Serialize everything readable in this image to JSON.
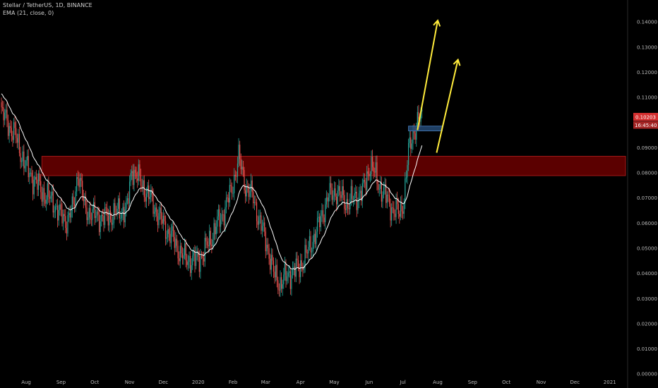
{
  "header": {
    "symbol_line": "Stellar / TetherUS, 1D, BINANCE",
    "indicator_line": "EMA (21, close, 0)"
  },
  "chart_data": {
    "type": "candlestick",
    "x_axis_labels": [
      "Aug",
      "Sep",
      "Oct",
      "Nov",
      "Dec",
      "2020",
      "Feb",
      "Mar",
      "Apr",
      "May",
      "Jun",
      "Jul",
      "Aug",
      "Sep",
      "Oct",
      "Nov",
      "Dec",
      "2021"
    ],
    "x_label_idx": [
      30,
      61,
      91,
      122,
      152,
      183,
      214,
      243,
      274,
      304,
      335,
      365,
      396,
      427,
      457,
      488,
      518,
      549
    ],
    "x_range_idx": [
      8,
      563
    ],
    "y_ticks": [
      "0.14000",
      "0.13000",
      "0.12000",
      "0.11000",
      "0.10000",
      "0.09000",
      "0.08000",
      "0.07000",
      "0.06000",
      "0.05000",
      "0.04000",
      "0.03000",
      "0.02000",
      "0.01000",
      "0.00000"
    ],
    "y_tick_values": [
      0.14,
      0.13,
      0.12,
      0.11,
      0.1,
      0.09,
      0.08,
      0.07,
      0.06,
      0.05,
      0.04,
      0.03,
      0.02,
      0.01,
      0.0
    ],
    "y_range": [
      -0.0005,
      0.1465
    ],
    "last_price": "0.10203",
    "last_price_value": 0.10203,
    "countdown": "16:45:40",
    "anchors": [
      [
        8,
        0.104
      ],
      [
        20,
        0.095
      ],
      [
        30,
        0.082
      ],
      [
        45,
        0.072
      ],
      [
        55,
        0.068
      ],
      [
        60,
        0.063
      ],
      [
        66,
        0.061
      ],
      [
        72,
        0.066
      ],
      [
        76,
        0.081
      ],
      [
        82,
        0.066
      ],
      [
        90,
        0.063
      ],
      [
        100,
        0.062
      ],
      [
        110,
        0.064
      ],
      [
        120,
        0.066
      ],
      [
        124,
        0.082
      ],
      [
        132,
        0.076
      ],
      [
        140,
        0.07
      ],
      [
        150,
        0.061
      ],
      [
        160,
        0.054
      ],
      [
        170,
        0.046
      ],
      [
        180,
        0.045
      ],
      [
        188,
        0.048
      ],
      [
        195,
        0.055
      ],
      [
        205,
        0.064
      ],
      [
        212,
        0.072
      ],
      [
        219,
        0.086
      ],
      [
        225,
        0.075
      ],
      [
        232,
        0.07
      ],
      [
        238,
        0.06
      ],
      [
        244,
        0.052
      ],
      [
        250,
        0.04
      ],
      [
        256,
        0.036
      ],
      [
        264,
        0.04
      ],
      [
        272,
        0.042
      ],
      [
        280,
        0.048
      ],
      [
        290,
        0.059
      ],
      [
        298,
        0.07
      ],
      [
        305,
        0.073
      ],
      [
        315,
        0.068
      ],
      [
        322,
        0.07
      ],
      [
        330,
        0.073
      ],
      [
        336,
        0.084
      ],
      [
        342,
        0.077
      ],
      [
        350,
        0.07
      ],
      [
        357,
        0.065
      ],
      [
        362,
        0.064
      ],
      [
        366,
        0.07
      ],
      [
        370,
        0.088
      ],
      [
        374,
        0.096
      ],
      [
        378,
        0.1
      ],
      [
        382,
        0.102
      ]
    ],
    "ema_label": "EMA (21, close, 0)",
    "resistance_zone": {
      "y_low": 0.0789,
      "y_high": 0.0866,
      "x_start": 44,
      "x_end": 563
    },
    "breakout_box": {
      "y_low": 0.0967,
      "y_high": 0.0986,
      "x_start": 370,
      "x_end": 400
    },
    "arrows": [
      {
        "from": [
          378,
          0.097
        ],
        "to": [
          396,
          0.1406
        ]
      },
      {
        "from": [
          395,
          0.088
        ],
        "to": [
          414,
          0.125
        ]
      }
    ],
    "colors": {
      "background": "#000000",
      "up": "#26a69a",
      "down": "#ef5350",
      "ema": "#ffffff",
      "zone_fill": "#6b0000",
      "zone_border": "#a01818",
      "box_fill": "#274f7c",
      "box_border": "#3f6fa8",
      "arrow": "#ffeb3b",
      "price_tag": "#d32f2f",
      "countdown_tag": "#a32424",
      "axis_text": "#b8b8b8"
    }
  }
}
